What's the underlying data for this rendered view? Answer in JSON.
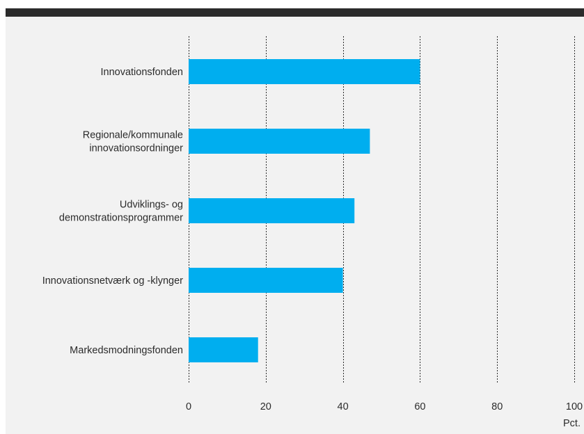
{
  "chart_data": {
    "type": "bar",
    "orientation": "horizontal",
    "categories": [
      "Innovationsfonden",
      "Regionale/kommunale innovationsordninger",
      "Udviklings- og demonstrationsprogrammer",
      "Innovationsnetværk og -klynger",
      "Markedsmodningsfonden"
    ],
    "category_lines": [
      [
        "Innovationsfonden"
      ],
      [
        "Regionale/kommunale",
        "innovationsordninger"
      ],
      [
        "Udviklings- og",
        "demonstrationsprogrammer"
      ],
      [
        "Innovationsnetværk og -klynger"
      ],
      [
        "Markedsmodningsfonden"
      ]
    ],
    "values": [
      60,
      47,
      43,
      40,
      18
    ],
    "xlim": [
      0,
      100
    ],
    "xticks": [
      0,
      20,
      40,
      60,
      80,
      100
    ],
    "xtick_labels": [
      "0",
      "20",
      "40",
      "60",
      "80",
      "100"
    ],
    "unit_label": "Pct.",
    "grid": true,
    "bar_color": "#00aeef",
    "title": "",
    "xlabel": "",
    "ylabel": ""
  }
}
